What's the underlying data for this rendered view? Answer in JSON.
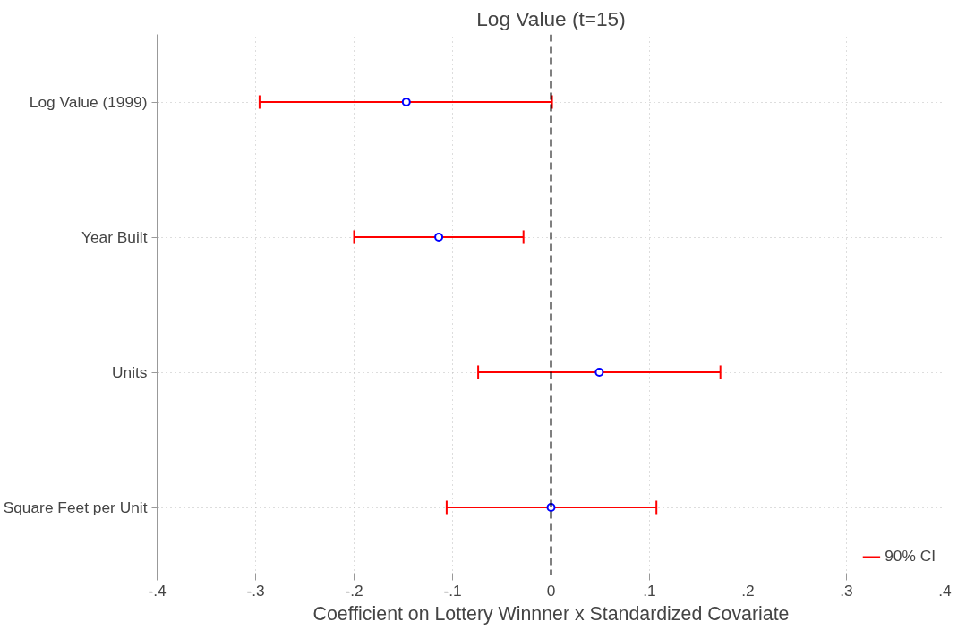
{
  "chart_data": {
    "type": "scatter",
    "orientation": "horizontal",
    "title": "Log Value (t=15)",
    "xlabel": "Coefficient on Lottery Winnner x Standardized Covariate",
    "categories": [
      "Log Value (1999)",
      "Year Built",
      "Units",
      "Square Feet per Unit"
    ],
    "series": [
      {
        "name": "90% CI",
        "color": "#ff0000",
        "colors": [
          "#0000ff",
          "#0000ff",
          "#0000ff",
          "#0000ff"
        ],
        "values": [
          -0.147,
          -0.114,
          0.049,
          0.0
        ],
        "errors": [
          [
            -0.296,
            0.001
          ],
          [
            -0.2,
            -0.028
          ],
          [
            -0.074,
            0.172
          ],
          [
            -0.106,
            0.107
          ]
        ]
      }
    ],
    "xlim": [
      -0.4,
      0.4
    ],
    "xticks": [
      {
        "value": -0.4,
        "label": "-.4"
      },
      {
        "value": -0.3,
        "label": "-.3"
      },
      {
        "value": -0.2,
        "label": "-.2"
      },
      {
        "value": -0.1,
        "label": "-.1"
      },
      0,
      {
        "value": 0.1,
        "label": ".1"
      },
      {
        "value": 0.2,
        "label": ".2"
      },
      {
        "value": 0.3,
        "label": ".3"
      },
      {
        "value": 0.4,
        "label": ".4"
      }
    ],
    "ref_lines": [
      {
        "axis": "x",
        "value": 0,
        "color": "#000000",
        "line_style": "dashed"
      }
    ],
    "grid": true,
    "legend": "bottom right",
    "marker": "circle"
  }
}
